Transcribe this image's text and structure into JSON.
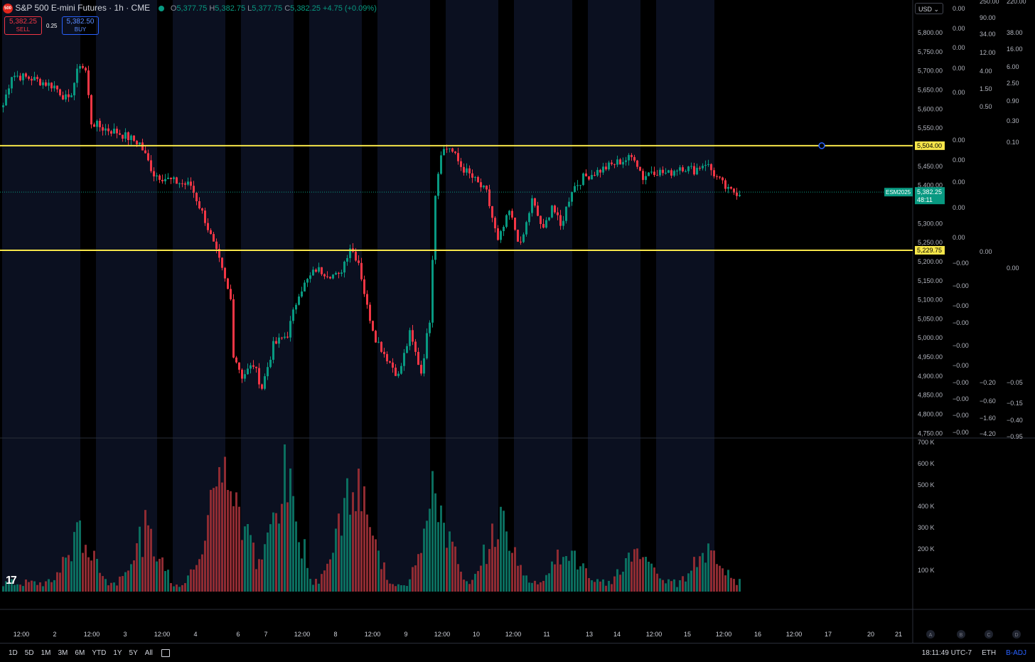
{
  "header": {
    "logo": "500",
    "title": "S&P 500 E-mini Futures · 1h · CME",
    "ohlc": [
      {
        "k": "O",
        "v": "5,377.75"
      },
      {
        "k": "H",
        "v": "5,382.75"
      },
      {
        "k": "L",
        "v": "5,377.75"
      },
      {
        "k": "C",
        "v": "5,382.25"
      }
    ],
    "change": "+4.75 (+0.09%)"
  },
  "trade": {
    "sell_price": "5,382.25",
    "sell_label": "SELL",
    "spread": "0.25",
    "buy_price": "5,382.50",
    "buy_label": "BUY"
  },
  "currency": "USD",
  "bottom_bar": {
    "ranges": [
      "1D",
      "5D",
      "1M",
      "3M",
      "6M",
      "YTD",
      "1Y",
      "5Y",
      "All"
    ],
    "clock": "18:11:49 UTC-7",
    "session": "ETH",
    "adjustment": "B-ADJ"
  },
  "colors": {
    "up": "#089981",
    "down": "#f23645",
    "hline": "#f7e64a",
    "bg": "#000000"
  },
  "chart_data": {
    "type": "candlestick",
    "symbol_tag": "ESM2025",
    "last_price": "5,382.25",
    "countdown": "48:11",
    "price_axis": {
      "ticks": [
        "5,800.00",
        "5,750.00",
        "5,700.00",
        "5,650.00",
        "5,600.00",
        "5,550.00",
        "5,450.00",
        "5,400.00",
        "5,300.00",
        "5,250.00",
        "5,200.00",
        "5,150.00",
        "5,100.00",
        "5,050.00",
        "5,000.00",
        "4,950.00",
        "4,900.00",
        "4,850.00",
        "4,800.00",
        "4,750.00"
      ],
      "range": [
        4745,
        5830
      ]
    },
    "volume_axis": {
      "ticks": [
        "700 K",
        "600 K",
        "500 K",
        "400 K",
        "300 K",
        "200 K",
        "100 K"
      ],
      "range": [
        0,
        700000
      ]
    },
    "horizontal_lines": [
      {
        "label": "5,504.00",
        "value": 5504
      },
      {
        "label": "5,229.75",
        "value": 5229.75
      }
    ],
    "time_labels": [
      "12:00",
      "2",
      "12:00",
      "3",
      "12:00",
      "4",
      "6",
      "7",
      "12:00",
      "8",
      "12:00",
      "9",
      "12:00",
      "10",
      "12:00",
      "11",
      "13",
      "14",
      "12:00",
      "15",
      "12:00",
      "16",
      "12:00",
      "17",
      "20",
      "21"
    ],
    "scale_letters": [
      "A",
      "B",
      "C",
      "D"
    ],
    "side_scales": [
      {
        "values": [
          "0.00",
          "0.00",
          "0.00",
          "0.00",
          "0.00",
          "0.00",
          "0.00",
          "0.00",
          "0.00",
          "0.00",
          "−0.00",
          "−0.00",
          "−0.00",
          "−0.00",
          "−0.00",
          "−0.00",
          "−0.00",
          "−0.00",
          "−0.00",
          "−0.00",
          "−0.00"
        ]
      },
      {
        "values": [
          "250.00",
          "90.00",
          "34.00",
          "12.00",
          "4.00",
          "1.50",
          "0.50",
          "0.00",
          "−0.20",
          "−0.60",
          "−1.60",
          "−4.20"
        ]
      },
      {
        "values": [
          "220.00",
          "38.00",
          "16.00",
          "6.00",
          "2.50",
          "0.90",
          "0.30",
          "0.10",
          "0.00",
          "−0.05",
          "−0.15",
          "−0.40",
          "−0.95"
        ]
      }
    ],
    "path": [
      {
        "i": 0,
        "p": 5610
      },
      {
        "i": 3,
        "p": 5690
      },
      {
        "i": 10,
        "p": 5680
      },
      {
        "i": 18,
        "p": 5660
      },
      {
        "i": 23,
        "p": 5620
      },
      {
        "i": 27,
        "p": 5720
      },
      {
        "i": 29,
        "p": 5700
      },
      {
        "i": 31,
        "p": 5565
      },
      {
        "i": 35,
        "p": 5550
      },
      {
        "i": 40,
        "p": 5540
      },
      {
        "i": 48,
        "p": 5510
      },
      {
        "i": 53,
        "p": 5430
      },
      {
        "i": 60,
        "p": 5410
      },
      {
        "i": 66,
        "p": 5400
      },
      {
        "i": 71,
        "p": 5310
      },
      {
        "i": 76,
        "p": 5200
      },
      {
        "i": 80,
        "p": 5100
      },
      {
        "i": 81,
        "p": 4960
      },
      {
        "i": 84,
        "p": 4900
      },
      {
        "i": 88,
        "p": 4930
      },
      {
        "i": 91,
        "p": 4870
      },
      {
        "i": 95,
        "p": 4980
      },
      {
        "i": 100,
        "p": 5010
      },
      {
        "i": 104,
        "p": 5120
      },
      {
        "i": 110,
        "p": 5180
      },
      {
        "i": 118,
        "p": 5160
      },
      {
        "i": 122,
        "p": 5240
      },
      {
        "i": 125,
        "p": 5200
      },
      {
        "i": 128,
        "p": 5080
      },
      {
        "i": 131,
        "p": 5000
      },
      {
        "i": 134,
        "p": 4960
      },
      {
        "i": 139,
        "p": 4900
      },
      {
        "i": 143,
        "p": 5010
      },
      {
        "i": 147,
        "p": 4910
      },
      {
        "i": 150,
        "p": 5050
      },
      {
        "i": 152,
        "p": 5380
      },
      {
        "i": 154,
        "p": 5490
      },
      {
        "i": 157,
        "p": 5500
      },
      {
        "i": 161,
        "p": 5450
      },
      {
        "i": 165,
        "p": 5420
      },
      {
        "i": 170,
        "p": 5380
      },
      {
        "i": 174,
        "p": 5250
      },
      {
        "i": 178,
        "p": 5330
      },
      {
        "i": 182,
        "p": 5240
      },
      {
        "i": 186,
        "p": 5360
      },
      {
        "i": 190,
        "p": 5280
      },
      {
        "i": 193,
        "p": 5350
      },
      {
        "i": 196,
        "p": 5290
      },
      {
        "i": 200,
        "p": 5390
      },
      {
        "i": 204,
        "p": 5420
      },
      {
        "i": 210,
        "p": 5440
      },
      {
        "i": 216,
        "p": 5460
      },
      {
        "i": 222,
        "p": 5475
      },
      {
        "i": 225,
        "p": 5420
      },
      {
        "i": 228,
        "p": 5440
      },
      {
        "i": 234,
        "p": 5430
      },
      {
        "i": 238,
        "p": 5450
      },
      {
        "i": 243,
        "p": 5440
      },
      {
        "i": 247,
        "p": 5460
      },
      {
        "i": 251,
        "p": 5420
      },
      {
        "i": 255,
        "p": 5385
      },
      {
        "i": 258,
        "p": 5382
      }
    ],
    "volume_spikes": [
      {
        "i": 27,
        "v": 290000
      },
      {
        "i": 50,
        "v": 300000
      },
      {
        "i": 74,
        "v": 420000
      },
      {
        "i": 81,
        "v": 560000
      },
      {
        "i": 99,
        "v": 640000
      },
      {
        "i": 120,
        "v": 320000
      },
      {
        "i": 126,
        "v": 390000
      },
      {
        "i": 152,
        "v": 530000
      },
      {
        "i": 175,
        "v": 370000
      },
      {
        "i": 198,
        "v": 210000
      },
      {
        "i": 223,
        "v": 200000
      },
      {
        "i": 248,
        "v": 220000
      }
    ]
  }
}
